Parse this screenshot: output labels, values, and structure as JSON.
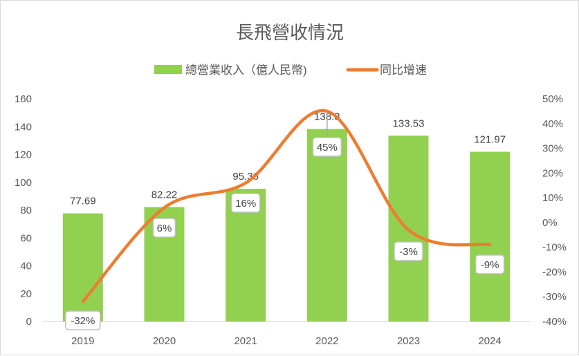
{
  "chart_data": {
    "type": "bar+line",
    "title": "長飛營收情況",
    "categories": [
      "2019",
      "2020",
      "2021",
      "2022",
      "2023",
      "2024"
    ],
    "series": [
      {
        "name": "總營業收入（億人民幣)",
        "type": "bar",
        "axis": "left",
        "color": "#92d050",
        "values": [
          77.69,
          82.22,
          95.36,
          138.3,
          133.53,
          121.97
        ],
        "labels": [
          "77.69",
          "82.22",
          "95.36",
          "138.3",
          "133.53",
          "121.97"
        ]
      },
      {
        "name": "同比增速",
        "type": "line",
        "axis": "right",
        "smooth": true,
        "color": "#ed7d31",
        "values": [
          -32,
          6,
          16,
          45,
          -3,
          -9
        ],
        "labels": [
          "-32%",
          "6%",
          "16%",
          "45%",
          "-3%",
          "-9%"
        ]
      }
    ],
    "y_left": {
      "min": 0,
      "max": 160,
      "step": 20,
      "ticks": [
        "0",
        "20",
        "40",
        "60",
        "80",
        "100",
        "120",
        "140",
        "160"
      ]
    },
    "y_right": {
      "min": -40,
      "max": 50,
      "step": 10,
      "ticks": [
        "-40%",
        "-30%",
        "-20%",
        "-10%",
        "0%",
        "10%",
        "20%",
        "30%",
        "40%",
        "50%"
      ]
    },
    "legend": "top",
    "grid": false
  }
}
